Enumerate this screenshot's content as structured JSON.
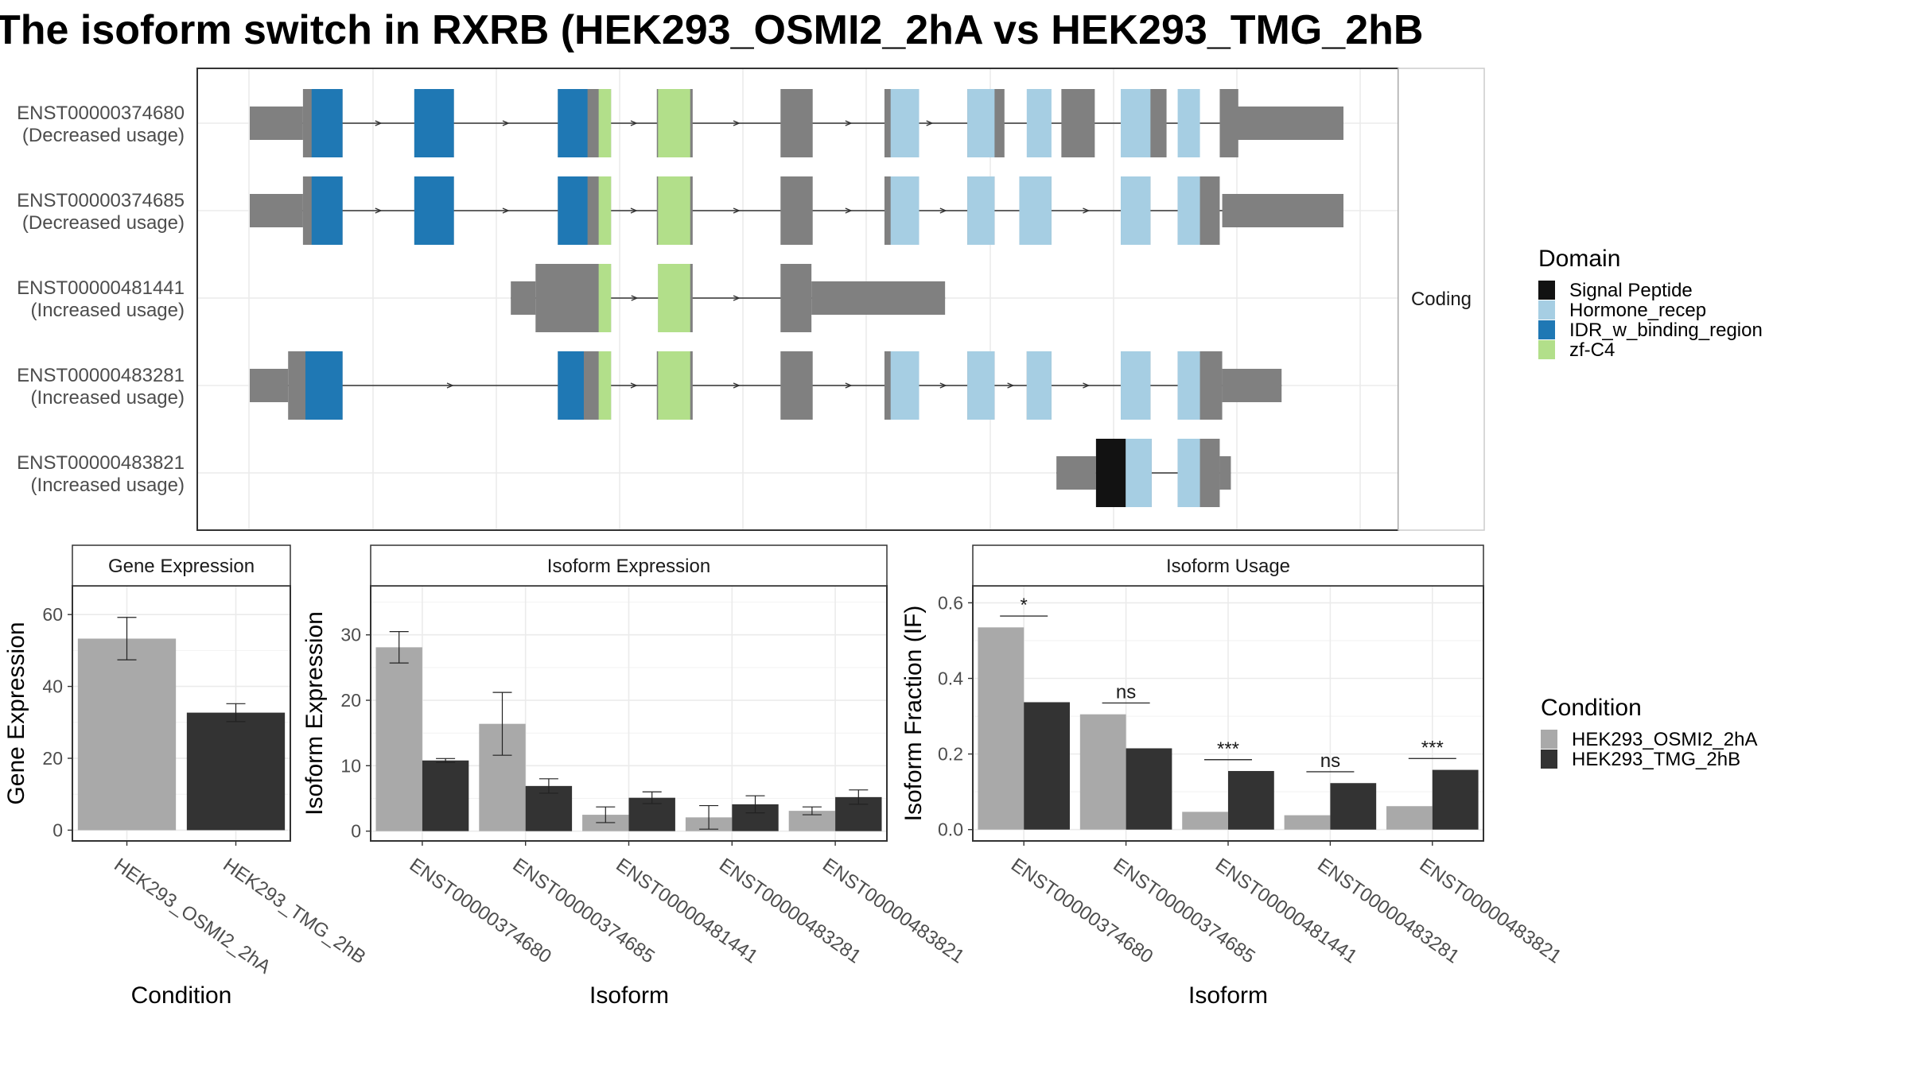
{
  "title": "The isoform switch in RXRB (HEK293_OSMI2_2hA vs HEK293_TMG_2hB",
  "colors": {
    "exon": "#808080",
    "signal_peptide": "#121212",
    "hormone_recep": "#a6cee3",
    "idr_binding": "#1f78b4",
    "zfc4": "#b2df8a",
    "cond_a": "#a9a9a9",
    "cond_b": "#333333",
    "grid": "#ebebeb",
    "panel_border": "#333333",
    "strip_fill": "#ffffff"
  },
  "structure_panel": {
    "facet_label": "Coding",
    "transcripts": [
      {
        "id": "ENST00000374680",
        "usage": "(Decreased usage)",
        "utrs": [
          [
            0,
            43
          ],
          [
            786,
            884
          ]
        ],
        "exons": [
          [
            43,
            75
          ],
          [
            133,
            165
          ],
          [
            249,
            292
          ],
          [
            329,
            358
          ],
          [
            429,
            455
          ],
          [
            513,
            519
          ],
          [
            580,
            610
          ],
          [
            656,
            683
          ],
          [
            706,
            741
          ],
          [
            799,
            784
          ]
        ],
        "domains": [
          {
            "type": "idr_binding",
            "s": 50,
            "e": 75
          },
          {
            "type": "idr_binding",
            "s": 133,
            "e": 165
          },
          {
            "type": "idr_binding",
            "s": 249,
            "e": 273
          },
          {
            "type": "zfc4",
            "s": 282,
            "e": 292
          },
          {
            "type": "zfc4",
            "s": 330,
            "e": 356
          },
          {
            "type": "hormone_recep",
            "s": 518,
            "e": 541
          },
          {
            "type": "hormone_recep",
            "s": 580,
            "e": 602
          },
          {
            "type": "hormone_recep",
            "s": 628,
            "e": 648
          },
          {
            "type": "hormone_recep",
            "s": 704,
            "e": 728
          },
          {
            "type": "hormone_recep",
            "s": 750,
            "e": 768
          }
        ]
      },
      {
        "id": "ENST00000374685",
        "usage": "(Decreased usage)",
        "utrs": [
          [
            0,
            43
          ],
          [
            786,
            884
          ]
        ],
        "exons": [
          [
            43,
            75
          ],
          [
            133,
            165
          ],
          [
            249,
            292
          ],
          [
            329,
            358
          ],
          [
            429,
            455
          ],
          [
            513,
            541
          ],
          [
            580,
            602
          ],
          [
            622,
            648
          ],
          [
            704,
            728
          ],
          [
            750,
            784
          ]
        ],
        "domains": [
          {
            "type": "idr_binding",
            "s": 50,
            "e": 75
          },
          {
            "type": "idr_binding",
            "s": 133,
            "e": 165
          },
          {
            "type": "idr_binding",
            "s": 249,
            "e": 273
          },
          {
            "type": "zfc4",
            "s": 282,
            "e": 292
          },
          {
            "type": "zfc4",
            "s": 330,
            "e": 356
          },
          {
            "type": "hormone_recep",
            "s": 518,
            "e": 541
          },
          {
            "type": "hormone_recep",
            "s": 580,
            "e": 602
          },
          {
            "type": "hormone_recep",
            "s": 622,
            "e": 648
          },
          {
            "type": "hormone_recep",
            "s": 704,
            "e": 728
          },
          {
            "type": "hormone_recep",
            "s": 750,
            "e": 768
          }
        ]
      },
      {
        "id": "ENST00000481441",
        "usage": "(Increased usage)",
        "utrs": [
          [
            211,
            231
          ],
          [
            454,
            562
          ]
        ],
        "exons": [
          [
            231,
            292
          ],
          [
            330,
            358
          ],
          [
            429,
            454
          ]
        ],
        "domains": [
          {
            "type": "zfc4",
            "s": 282,
            "e": 292
          },
          {
            "type": "zfc4",
            "s": 330,
            "e": 356
          }
        ]
      },
      {
        "id": "ENST00000483281",
        "usage": "(Increased usage)",
        "utrs": [
          [
            0,
            31
          ],
          [
            786,
            834
          ]
        ],
        "exons": [
          [
            31,
            75
          ],
          [
            249,
            292
          ],
          [
            329,
            358
          ],
          [
            429,
            455
          ],
          [
            513,
            541
          ],
          [
            580,
            602
          ],
          [
            628,
            648
          ],
          [
            704,
            728
          ],
          [
            750,
            786
          ]
        ],
        "domains": [
          {
            "type": "idr_binding",
            "s": 45,
            "e": 75
          },
          {
            "type": "idr_binding",
            "s": 249,
            "e": 270
          },
          {
            "type": "zfc4",
            "s": 282,
            "e": 292
          },
          {
            "type": "zfc4",
            "s": 330,
            "e": 356
          },
          {
            "type": "hormone_recep",
            "s": 518,
            "e": 541
          },
          {
            "type": "hormone_recep",
            "s": 580,
            "e": 602
          },
          {
            "type": "hormone_recep",
            "s": 628,
            "e": 648
          },
          {
            "type": "hormone_recep",
            "s": 704,
            "e": 728
          },
          {
            "type": "hormone_recep",
            "s": 750,
            "e": 768
          }
        ]
      },
      {
        "id": "ENST00000483821",
        "usage": "(Increased usage)",
        "utrs": [
          [
            652,
            684
          ],
          [
            784,
            793
          ]
        ],
        "exons": [
          [
            684,
            729
          ],
          [
            750,
            784
          ]
        ],
        "domains": [
          {
            "type": "signal_peptide",
            "s": 684,
            "e": 708
          },
          {
            "type": "hormone_recep",
            "s": 708,
            "e": 729
          },
          {
            "type": "hormone_recep",
            "s": 750,
            "e": 768
          }
        ]
      }
    ]
  },
  "domain_legend": {
    "title": "Domain",
    "items": [
      {
        "label": "Signal Peptide",
        "color_key": "signal_peptide"
      },
      {
        "label": "Hormone_recep",
        "color_key": "hormone_recep"
      },
      {
        "label": "IDR_w_binding_region",
        "color_key": "idr_binding"
      },
      {
        "label": "zf-C4",
        "color_key": "zfc4"
      }
    ]
  },
  "condition_legend": {
    "title": "Condition",
    "items": [
      {
        "label": "HEK293_OSMI2_2hA",
        "color_key": "cond_a"
      },
      {
        "label": "HEK293_TMG_2hB",
        "color_key": "cond_b"
      }
    ]
  },
  "chart_data": [
    {
      "type": "bar",
      "title": "Gene Expression",
      "xlabel": "Condition",
      "ylabel": "Gene Expression",
      "categories": [
        "HEK293_OSMI2_2hA",
        "HEK293_TMG_2hB"
      ],
      "series": [
        {
          "name": "HEK293_OSMI2_2hA",
          "values": [
            53.3,
            null
          ],
          "err_low": [
            47.4,
            null
          ],
          "err_high": [
            59.2,
            null
          ]
        },
        {
          "name": "HEK293_TMG_2hB",
          "values": [
            null,
            32.7
          ],
          "err_low": [
            null,
            30.2
          ],
          "err_high": [
            null,
            35.2
          ]
        }
      ],
      "ylim": [
        -3,
        68
      ],
      "yticks": [
        0,
        20,
        40,
        60
      ]
    },
    {
      "type": "bar",
      "title": "Isoform Expression",
      "xlabel": "Isoform",
      "ylabel": "Isoform Expression",
      "categories": [
        "ENST00000374680",
        "ENST00000374685",
        "ENST00000481441",
        "ENST00000483281",
        "ENST00000483821"
      ],
      "series": [
        {
          "name": "HEK293_OSMI2_2hA",
          "values": [
            28.1,
            16.4,
            2.5,
            2.1,
            3.1
          ],
          "err_low": [
            25.7,
            11.6,
            1.3,
            0.3,
            2.5
          ],
          "err_high": [
            30.5,
            21.2,
            3.7,
            3.9,
            3.7
          ]
        },
        {
          "name": "HEK293_TMG_2hB",
          "values": [
            10.8,
            6.9,
            5.1,
            4.1,
            5.2
          ],
          "err_low": [
            10.5,
            5.8,
            4.2,
            2.8,
            4.1
          ],
          "err_high": [
            11.1,
            8.0,
            6.0,
            5.4,
            6.3
          ]
        }
      ],
      "ylim": [
        -1.5,
        37.5
      ],
      "yticks": [
        0,
        10,
        20,
        30
      ]
    },
    {
      "type": "bar",
      "title": "Isoform Usage",
      "xlabel": "Isoform",
      "ylabel": "Isoform Fraction (IF)",
      "categories": [
        "ENST00000374680",
        "ENST00000374685",
        "ENST00000481441",
        "ENST00000483281",
        "ENST00000483821"
      ],
      "series": [
        {
          "name": "HEK293_OSMI2_2hA",
          "values": [
            0.535,
            0.305,
            0.047,
            0.038,
            0.062
          ]
        },
        {
          "name": "HEK293_TMG_2hB",
          "values": [
            0.337,
            0.215,
            0.155,
            0.123,
            0.158
          ]
        }
      ],
      "significance": [
        {
          "label": "*",
          "y": 0.565
        },
        {
          "label": "ns",
          "y": 0.335
        },
        {
          "label": "***",
          "y": 0.185
        },
        {
          "label": "ns",
          "y": 0.153
        },
        {
          "label": "***",
          "y": 0.188
        }
      ],
      "ylim": [
        -0.03,
        0.645
      ],
      "yticks": [
        0.0,
        0.2,
        0.4,
        0.6
      ],
      "ytick_labels": [
        "0.0",
        "0.2",
        "0.4",
        "0.6"
      ]
    }
  ]
}
